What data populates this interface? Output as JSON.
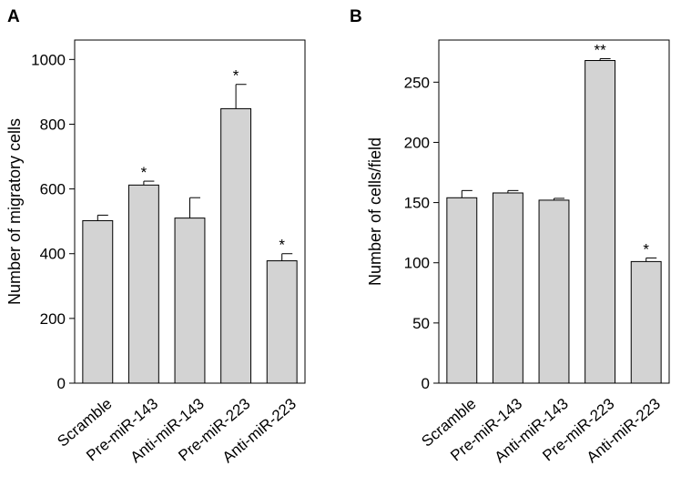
{
  "chart_data": [
    {
      "panel": "A",
      "type": "bar",
      "categories": [
        "Scramble",
        "Pre-miR-143",
        "Anti-miR-143",
        "Pre-miR-223",
        "Anti-miR-223"
      ],
      "values": [
        502,
        612,
        510,
        848,
        378
      ],
      "errors": [
        17,
        12,
        63,
        75,
        22
      ],
      "significance": [
        "",
        "*",
        "",
        "*",
        "*"
      ],
      "ylabel": "Number of migratory cells",
      "xlabel": "",
      "ylim": [
        0,
        1060
      ],
      "yticks": [
        0,
        200,
        400,
        600,
        800,
        1000
      ],
      "bar_color": "#d3d3d3"
    },
    {
      "panel": "B",
      "type": "bar",
      "categories": [
        "Scramble",
        "Pre-miR-143",
        "Anti-miR-143",
        "Pre-miR-223",
        "Anti-miR-223"
      ],
      "values": [
        154,
        158,
        152,
        268,
        101
      ],
      "errors": [
        6,
        2,
        1.5,
        1.5,
        3
      ],
      "significance": [
        "",
        "",
        "",
        "**",
        "*"
      ],
      "ylabel": "Number of cells/field",
      "xlabel": "",
      "ylim": [
        0,
        285
      ],
      "yticks": [
        0,
        50,
        100,
        150,
        200,
        250
      ],
      "bar_color": "#d3d3d3"
    }
  ]
}
